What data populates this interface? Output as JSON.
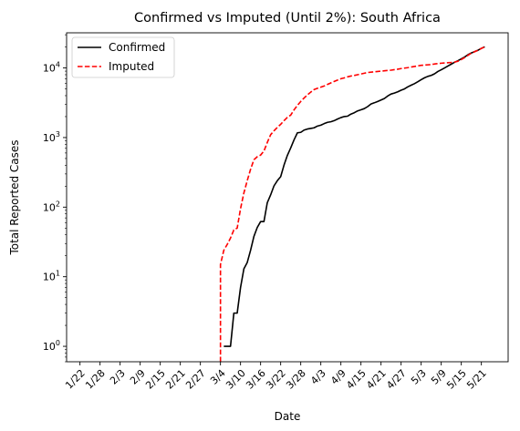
{
  "chart_data": {
    "type": "line",
    "title": "Confirmed vs Imputed (Until 2%): South Africa",
    "xlabel": "Date",
    "ylabel": "Total Reported Cases",
    "yscale": "log",
    "ylim": [
      0.6,
      32000
    ],
    "x_tick_labels": [
      "1/22",
      "1/28",
      "2/3",
      "2/9",
      "2/15",
      "2/21",
      "2/27",
      "3/4",
      "3/10",
      "3/16",
      "3/22",
      "3/28",
      "4/3",
      "4/9",
      "4/15",
      "4/21",
      "4/27",
      "5/3",
      "5/9",
      "5/15",
      "5/21"
    ],
    "y_ticks": [
      {
        "value": 1,
        "base": "10",
        "exp": "0"
      },
      {
        "value": 10,
        "base": "10",
        "exp": "1"
      },
      {
        "value": 100,
        "base": "10",
        "exp": "2"
      },
      {
        "value": 1000,
        "base": "10",
        "exp": "3"
      },
      {
        "value": 10000,
        "base": "10",
        "exp": "4"
      }
    ],
    "legend_position": "top-left",
    "grid": false,
    "series": [
      {
        "name": "Confirmed",
        "color": "#000000",
        "dash": "solid",
        "points": [
          [
            "3/5",
            1
          ],
          [
            "3/6",
            1
          ],
          [
            "3/7",
            1
          ],
          [
            "3/8",
            3
          ],
          [
            "3/9",
            3
          ],
          [
            "3/10",
            7
          ],
          [
            "3/11",
            13
          ],
          [
            "3/12",
            16
          ],
          [
            "3/13",
            24
          ],
          [
            "3/14",
            38
          ],
          [
            "3/15",
            51
          ],
          [
            "3/16",
            62
          ],
          [
            "3/17",
            62
          ],
          [
            "3/18",
            116
          ],
          [
            "3/19",
            150
          ],
          [
            "3/20",
            202
          ],
          [
            "3/21",
            240
          ],
          [
            "3/22",
            274
          ],
          [
            "3/23",
            402
          ],
          [
            "3/24",
            554
          ],
          [
            "3/25",
            709
          ],
          [
            "3/26",
            927
          ],
          [
            "3/27",
            1170
          ],
          [
            "3/28",
            1187
          ],
          [
            "3/29",
            1280
          ],
          [
            "3/30",
            1326
          ],
          [
            "3/31",
            1353
          ],
          [
            "4/1",
            1380
          ],
          [
            "4/2",
            1462
          ],
          [
            "4/3",
            1505
          ],
          [
            "4/4",
            1585
          ],
          [
            "4/5",
            1655
          ],
          [
            "4/6",
            1686
          ],
          [
            "4/7",
            1749
          ],
          [
            "4/8",
            1845
          ],
          [
            "4/9",
            1934
          ],
          [
            "4/10",
            2003
          ],
          [
            "4/11",
            2028
          ],
          [
            "4/12",
            2173
          ],
          [
            "4/13",
            2272
          ],
          [
            "4/14",
            2415
          ],
          [
            "4/15",
            2506
          ],
          [
            "4/16",
            2605
          ],
          [
            "4/17",
            2783
          ],
          [
            "4/18",
            3034
          ],
          [
            "4/19",
            3158
          ],
          [
            "4/20",
            3300
          ],
          [
            "4/21",
            3465
          ],
          [
            "4/22",
            3635
          ],
          [
            "4/23",
            3953
          ],
          [
            "4/24",
            4220
          ],
          [
            "4/25",
            4361
          ],
          [
            "4/26",
            4546
          ],
          [
            "4/27",
            4793
          ],
          [
            "4/28",
            4996
          ],
          [
            "4/29",
            5350
          ],
          [
            "4/30",
            5647
          ],
          [
            "5/1",
            5951
          ],
          [
            "5/2",
            6336
          ],
          [
            "5/3",
            6783
          ],
          [
            "5/4",
            7220
          ],
          [
            "5/5",
            7572
          ],
          [
            "5/6",
            7808
          ],
          [
            "5/7",
            8232
          ],
          [
            "5/8",
            8895
          ],
          [
            "5/9",
            9420
          ],
          [
            "5/10",
            10015
          ],
          [
            "5/11",
            10652
          ],
          [
            "5/12",
            11350
          ],
          [
            "5/13",
            12074
          ],
          [
            "5/14",
            12739
          ],
          [
            "5/15",
            13524
          ],
          [
            "5/16",
            14355
          ],
          [
            "5/17",
            15515
          ],
          [
            "5/18",
            16433
          ],
          [
            "5/19",
            17200
          ],
          [
            "5/20",
            18003
          ],
          [
            "5/21",
            19137
          ],
          [
            "5/22",
            20125
          ]
        ]
      },
      {
        "name": "Imputed",
        "color": "#ff0000",
        "dash": "dashed",
        "points": [
          [
            "3/4",
            0.6
          ],
          [
            "3/4",
            15
          ],
          [
            "3/5",
            24
          ],
          [
            "3/6",
            29
          ],
          [
            "3/7",
            36
          ],
          [
            "3/8",
            47
          ],
          [
            "3/9",
            50
          ],
          [
            "3/10",
            95
          ],
          [
            "3/11",
            160
          ],
          [
            "3/12",
            240
          ],
          [
            "3/13",
            350
          ],
          [
            "3/14",
            480
          ],
          [
            "3/15",
            530
          ],
          [
            "3/16",
            560
          ],
          [
            "3/17",
            640
          ],
          [
            "3/18",
            850
          ],
          [
            "3/19",
            1100
          ],
          [
            "3/20",
            1250
          ],
          [
            "3/21",
            1400
          ],
          [
            "3/22",
            1550
          ],
          [
            "3/23",
            1750
          ],
          [
            "3/24",
            1950
          ],
          [
            "3/25",
            2100
          ],
          [
            "3/26",
            2500
          ],
          [
            "3/27",
            2900
          ],
          [
            "3/28",
            3300
          ],
          [
            "3/29",
            3700
          ],
          [
            "3/30",
            4100
          ],
          [
            "3/31",
            4500
          ],
          [
            "4/1",
            4900
          ],
          [
            "4/2",
            5100
          ],
          [
            "4/3",
            5300
          ],
          [
            "4/4",
            5500
          ],
          [
            "4/5",
            5800
          ],
          [
            "4/6",
            6100
          ],
          [
            "4/7",
            6400
          ],
          [
            "4/8",
            6700
          ],
          [
            "4/9",
            7000
          ],
          [
            "4/10",
            7200
          ],
          [
            "4/11",
            7450
          ],
          [
            "4/12",
            7650
          ],
          [
            "4/13",
            7800
          ],
          [
            "4/14",
            8000
          ],
          [
            "4/15",
            8200
          ],
          [
            "4/16",
            8400
          ],
          [
            "4/17",
            8600
          ],
          [
            "4/18",
            8700
          ],
          [
            "4/19",
            8800
          ],
          [
            "4/20",
            8900
          ],
          [
            "4/21",
            9000
          ],
          [
            "4/22",
            9100
          ],
          [
            "4/23",
            9200
          ],
          [
            "4/24",
            9300
          ],
          [
            "4/25",
            9450
          ],
          [
            "4/26",
            9600
          ],
          [
            "4/27",
            9800
          ],
          [
            "4/28",
            9950
          ],
          [
            "4/29",
            10100
          ],
          [
            "4/30",
            10300
          ],
          [
            "5/1",
            10500
          ],
          [
            "5/2",
            10700
          ],
          [
            "5/3",
            10900
          ],
          [
            "5/4",
            11000
          ],
          [
            "5/5",
            11100
          ],
          [
            "5/6",
            11200
          ],
          [
            "5/7",
            11400
          ],
          [
            "5/8",
            11550
          ],
          [
            "5/9",
            11700
          ],
          [
            "5/10",
            11800
          ],
          [
            "5/11",
            11900
          ],
          [
            "5/12",
            12000
          ],
          [
            "5/13",
            12150
          ],
          [
            "5/14",
            12500
          ],
          [
            "5/15",
            13200
          ],
          [
            "5/16",
            14100
          ],
          [
            "5/17",
            15200
          ],
          [
            "5/18",
            16300
          ],
          [
            "5/19",
            17100
          ],
          [
            "5/20",
            18000
          ],
          [
            "5/21",
            19100
          ],
          [
            "5/22",
            20100
          ]
        ]
      }
    ]
  }
}
